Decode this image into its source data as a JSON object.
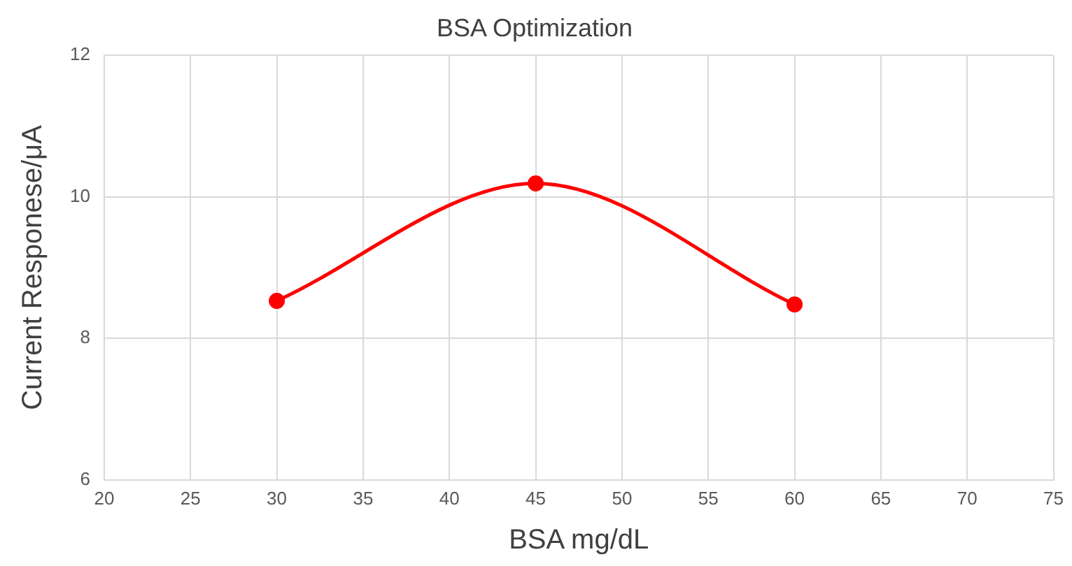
{
  "chart_data": {
    "type": "line",
    "title": "BSA Optimization",
    "xlabel": "BSA mg/dL",
    "ylabel": "Current Responese/μA",
    "x": [
      30,
      45,
      60
    ],
    "series": [
      {
        "color": "#ff0000",
        "values": [
          8.53,
          10.19,
          8.48
        ]
      }
    ],
    "xlim": [
      20,
      75
    ],
    "xticks": [
      20,
      25,
      30,
      35,
      40,
      45,
      50,
      55,
      60,
      65,
      70,
      75
    ],
    "ylim": [
      6,
      12
    ],
    "yticks": [
      6,
      8,
      10,
      12
    ],
    "grid": true,
    "legend": false,
    "marker": "circle",
    "line_style": "solid"
  }
}
